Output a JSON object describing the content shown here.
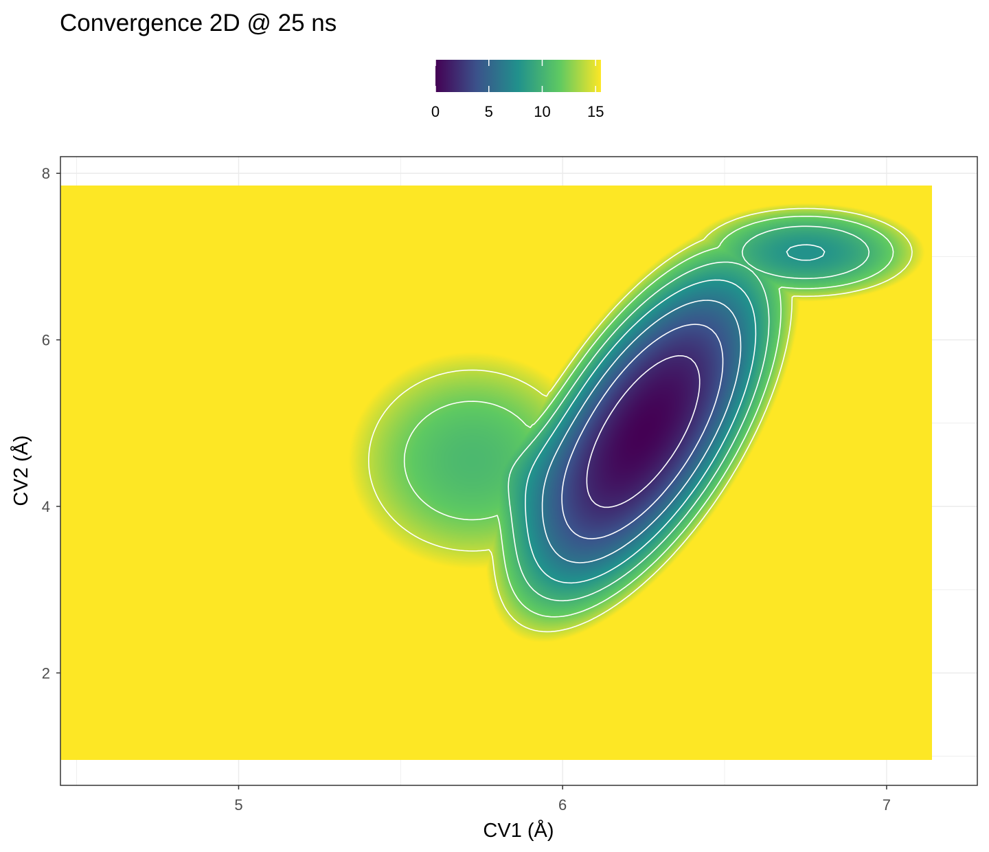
{
  "chart_data": {
    "type": "heatmap",
    "title": "Convergence 2D @ 25 ns",
    "xlabel": "CV1 (Å)",
    "ylabel": "CV2 (Å)",
    "xlim": [
      4.45,
      7.28
    ],
    "ylim": [
      0.65,
      8.2
    ],
    "x_ticks": [
      {
        "value": 5,
        "label": "5"
      },
      {
        "value": 6,
        "label": "6"
      },
      {
        "value": 7,
        "label": "7"
      }
    ],
    "y_ticks": [
      {
        "value": 2,
        "label": "2"
      },
      {
        "value": 4,
        "label": "4"
      },
      {
        "value": 6,
        "label": "6"
      },
      {
        "value": 8,
        "label": "8"
      }
    ],
    "grid": true,
    "data_extent": {
      "x": [
        4.45,
        7.14
      ],
      "y": [
        0.95,
        7.85
      ]
    },
    "colorbar": {
      "position": "top",
      "palette": "viridis",
      "colors": [
        "#440154",
        "#3b528b",
        "#21918c",
        "#5ec962",
        "#fde725"
      ],
      "range": [
        0,
        15.5
      ],
      "ticks": [
        {
          "value": 0,
          "label": "0"
        },
        {
          "value": 5,
          "label": "5"
        },
        {
          "value": 10,
          "label": "10"
        },
        {
          "value": 15,
          "label": "15"
        }
      ]
    },
    "minimum": {
      "x": 6.25,
      "y": 4.9,
      "value": 0
    },
    "contour_levels": [
      2,
      4,
      6,
      8,
      10,
      12,
      14
    ],
    "contour_color": "#ffffff"
  }
}
